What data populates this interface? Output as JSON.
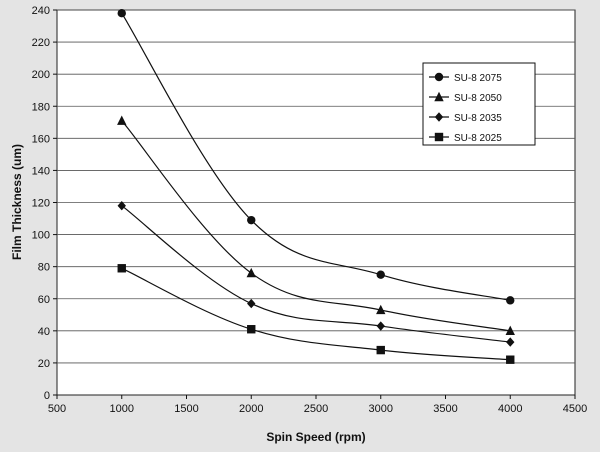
{
  "chart_data": {
    "type": "line",
    "xlabel": "Spin Speed (rpm)",
    "ylabel": "Film Thickness (um)",
    "xlim": [
      500,
      4500
    ],
    "ylim": [
      0,
      240
    ],
    "xticks": [
      500,
      1000,
      1500,
      2000,
      2500,
      3000,
      3500,
      4000,
      4500
    ],
    "yticks": [
      0,
      20,
      40,
      60,
      80,
      100,
      120,
      140,
      160,
      180,
      200,
      220,
      240
    ],
    "grid": "horizontal",
    "legend_position": "upper-right",
    "x": [
      1000,
      2000,
      3000,
      4000
    ],
    "series": [
      {
        "name": "SU-8 2075",
        "marker": "circle",
        "values": [
          238,
          109,
          75,
          59
        ]
      },
      {
        "name": "SU-8 2050",
        "marker": "triangle",
        "values": [
          171,
          76,
          53,
          40
        ]
      },
      {
        "name": "SU-8 2035",
        "marker": "diamond",
        "values": [
          118,
          57,
          43,
          33
        ]
      },
      {
        "name": "SU-8 2025",
        "marker": "square",
        "values": [
          79,
          41,
          28,
          22
        ]
      }
    ]
  }
}
